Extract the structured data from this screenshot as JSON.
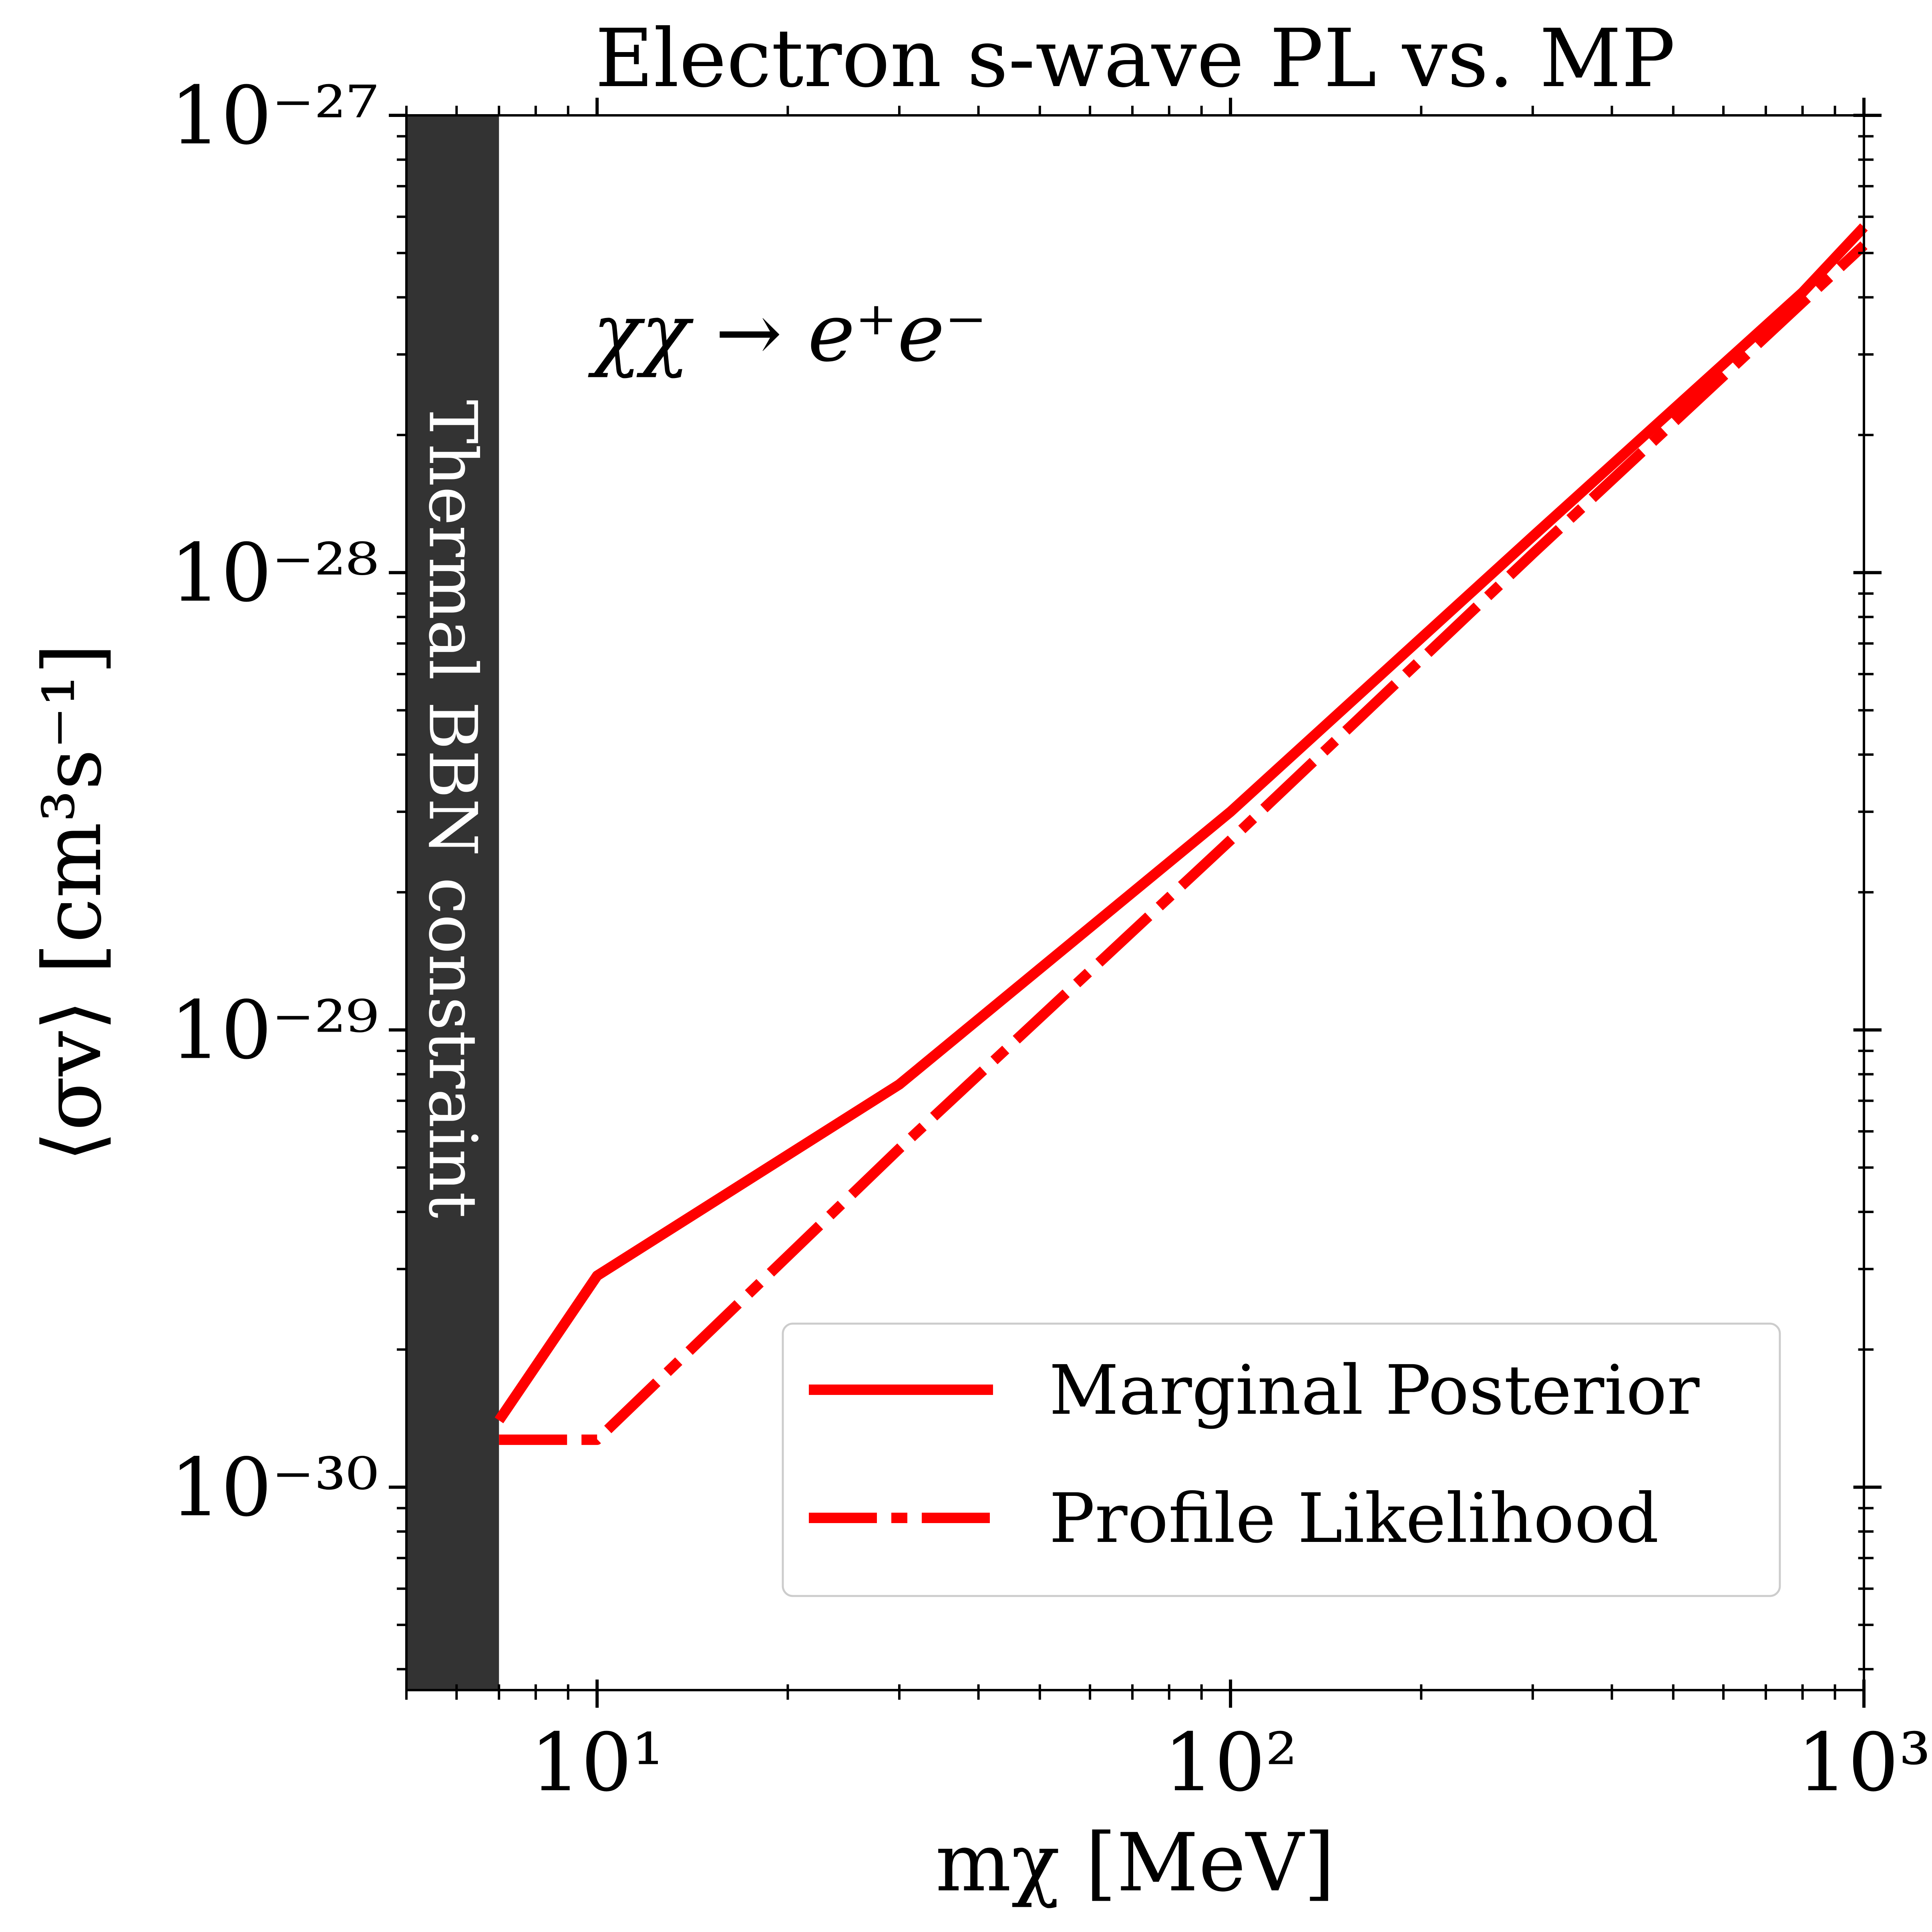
{
  "chart_data": {
    "type": "line",
    "title": "Electron s-wave PL vs. MP",
    "xlabel": "mχ [MeV]",
    "ylabel": "⟨σv⟩ [cm³s⁻¹]",
    "xscale": "log",
    "yscale": "log",
    "xlim": [
      5,
      1000
    ],
    "ylim": [
      3.6e-31,
      1e-27
    ],
    "x_ticks": [
      {
        "value": 10,
        "label": "10¹"
      },
      {
        "value": 100,
        "label": "10²"
      },
      {
        "value": 1000,
        "label": "10³"
      }
    ],
    "y_ticks": [
      {
        "value": 1e-30,
        "label": "10⁻³⁰"
      },
      {
        "value": 1e-29,
        "label": "10⁻²⁹"
      },
      {
        "value": 1e-28,
        "label": "10⁻²⁸"
      },
      {
        "value": 1e-27,
        "label": "10⁻²⁷"
      }
    ],
    "grid": false,
    "legend_position": "lower-right",
    "annotation": "χχ → e⁺e⁻",
    "shaded_region": {
      "label": "Thermal BBN constraint",
      "x_range": [
        5,
        7
      ],
      "color": "#333333"
    },
    "series": [
      {
        "name": "Marginal Posterior",
        "style": "solid",
        "color": "#ff0000",
        "x": [
          7,
          10,
          30,
          100,
          300,
          800,
          1000
        ],
        "y": [
          1.4e-30,
          2.9e-30,
          7.6e-30,
          3e-29,
          1.2e-28,
          4.1e-28,
          5.7e-28
        ]
      },
      {
        "name": "Profile Likelihood",
        "style": "dashdot",
        "color": "#ff0000",
        "x": [
          7,
          10,
          30,
          100,
          300,
          800,
          1000
        ],
        "y": [
          1.27e-30,
          1.27e-30,
          5.5e-30,
          2.6e-29,
          1.1e-28,
          3.9e-28,
          5.2e-28
        ]
      }
    ]
  }
}
